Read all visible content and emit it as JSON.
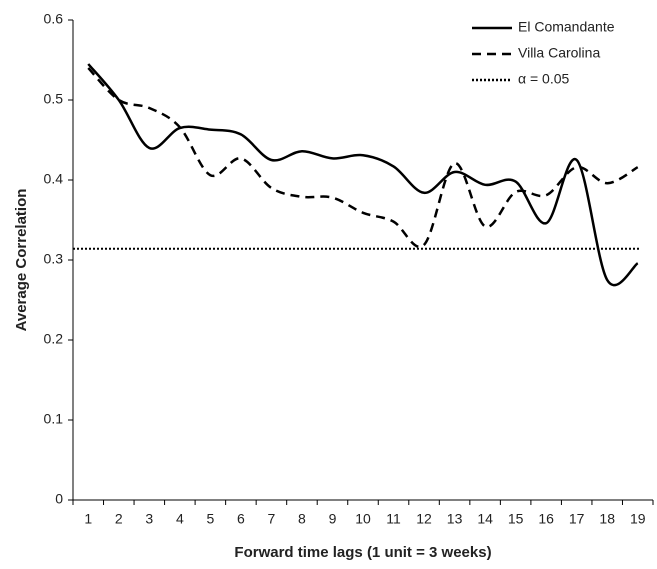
{
  "chart_data": {
    "type": "line",
    "x_label": "Forward time lags (1 unit = 3 weeks)",
    "y_label": "Average Correlation",
    "categories": [
      1,
      2,
      3,
      4,
      5,
      6,
      7,
      8,
      9,
      10,
      11,
      12,
      13,
      14,
      15,
      16,
      17,
      18,
      19
    ],
    "series": [
      {
        "name": "El Comandante",
        "color": "#000000",
        "dash": "solid",
        "values": [
          0.545,
          0.5,
          0.44,
          0.465,
          0.463,
          0.457,
          0.425,
          0.436,
          0.427,
          0.431,
          0.417,
          0.384,
          0.41,
          0.394,
          0.398,
          0.346,
          0.425,
          0.275,
          0.296
        ]
      },
      {
        "name": "Villa Carolina",
        "color": "#000000",
        "dash": "dashed",
        "values": [
          0.54,
          0.5,
          0.49,
          0.466,
          0.406,
          0.427,
          0.39,
          0.379,
          0.378,
          0.359,
          0.348,
          0.319,
          0.421,
          0.342,
          0.385,
          0.381,
          0.416,
          0.396,
          0.416
        ]
      }
    ],
    "reference_line": {
      "name": "α = 0.05",
      "value": 0.314,
      "color": "#000000",
      "dash": "dotted"
    },
    "ylim": [
      0,
      0.6
    ],
    "yticks": [
      0,
      0.1,
      0.2,
      0.3,
      0.4,
      0.5,
      0.6
    ],
    "grid": false,
    "legend": "top-right"
  }
}
